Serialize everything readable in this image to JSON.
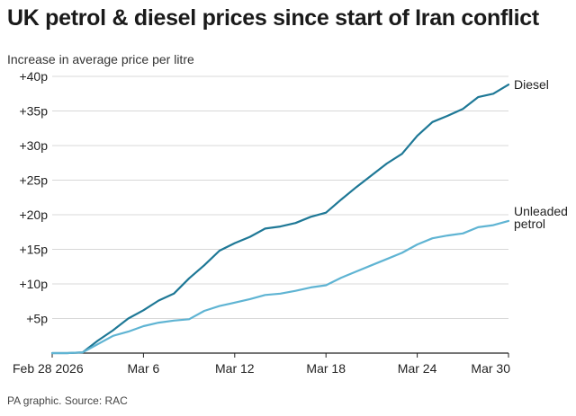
{
  "title": "UK petrol & diesel prices since start of Iran conflict",
  "subtitle": "Increase in average price per litre",
  "source": "PA graphic. Source: RAC",
  "colors": {
    "diesel": "#1e7896",
    "petrol": "#5fb4d3",
    "grid": "#d8d8d8",
    "axis": "#222222"
  },
  "chart_data": {
    "type": "line",
    "title": "UK petrol & diesel prices since start of Iran conflict",
    "ylabel": "Increase in average price per litre",
    "xlabel": "",
    "ylim": [
      0,
      40
    ],
    "yticks": [
      5,
      10,
      15,
      20,
      25,
      30,
      35,
      40
    ],
    "ytick_labels": [
      "+5p",
      "+10p",
      "+15p",
      "+20p",
      "+25p",
      "+30p",
      "+35p",
      "+40p"
    ],
    "xticks": [
      {
        "label": "Feb 28 2026",
        "day": 0
      },
      {
        "label": "Mar 6",
        "day": 6
      },
      {
        "label": "Mar 12",
        "day": 12
      },
      {
        "label": "Mar 18",
        "day": 18
      },
      {
        "label": "Mar 24",
        "day": 24
      },
      {
        "label": "Mar 30",
        "day": 30
      }
    ],
    "x": [
      "Feb 28",
      "Mar 1",
      "Mar 2",
      "Mar 3",
      "Mar 4",
      "Mar 5",
      "Mar 6",
      "Mar 7",
      "Mar 8",
      "Mar 9",
      "Mar 10",
      "Mar 11",
      "Mar 12",
      "Mar 13",
      "Mar 14",
      "Mar 15",
      "Mar 16",
      "Mar 17",
      "Mar 18",
      "Mar 19",
      "Mar 20",
      "Mar 21",
      "Mar 22",
      "Mar 23",
      "Mar 24",
      "Mar 25",
      "Mar 26",
      "Mar 27",
      "Mar 28",
      "Mar 29",
      "Mar 30"
    ],
    "grid": true,
    "legend": "direct labels at line ends",
    "series": [
      {
        "name": "Diesel",
        "label_lines": [
          "Diesel"
        ],
        "values": [
          0,
          0,
          0.1,
          1.8,
          3.3,
          5.0,
          6.2,
          7.6,
          8.6,
          10.8,
          12.7,
          14.8,
          15.9,
          16.8,
          18.0,
          18.3,
          18.8,
          19.7,
          20.3,
          22.2,
          24.0,
          25.7,
          27.4,
          28.8,
          31.4,
          33.4,
          34.3,
          35.3,
          37.0,
          37.5,
          38.8
        ]
      },
      {
        "name": "Unleaded petrol",
        "label_lines": [
          "Unleaded",
          "petrol"
        ],
        "values": [
          0,
          0,
          0.1,
          1.3,
          2.5,
          3.1,
          3.9,
          4.4,
          4.7,
          4.9,
          6.1,
          6.8,
          7.3,
          7.8,
          8.4,
          8.6,
          9.0,
          9.5,
          9.8,
          10.9,
          11.8,
          12.7,
          13.6,
          14.5,
          15.7,
          16.6,
          17.0,
          17.3,
          18.2,
          18.5,
          19.1
        ]
      }
    ]
  }
}
